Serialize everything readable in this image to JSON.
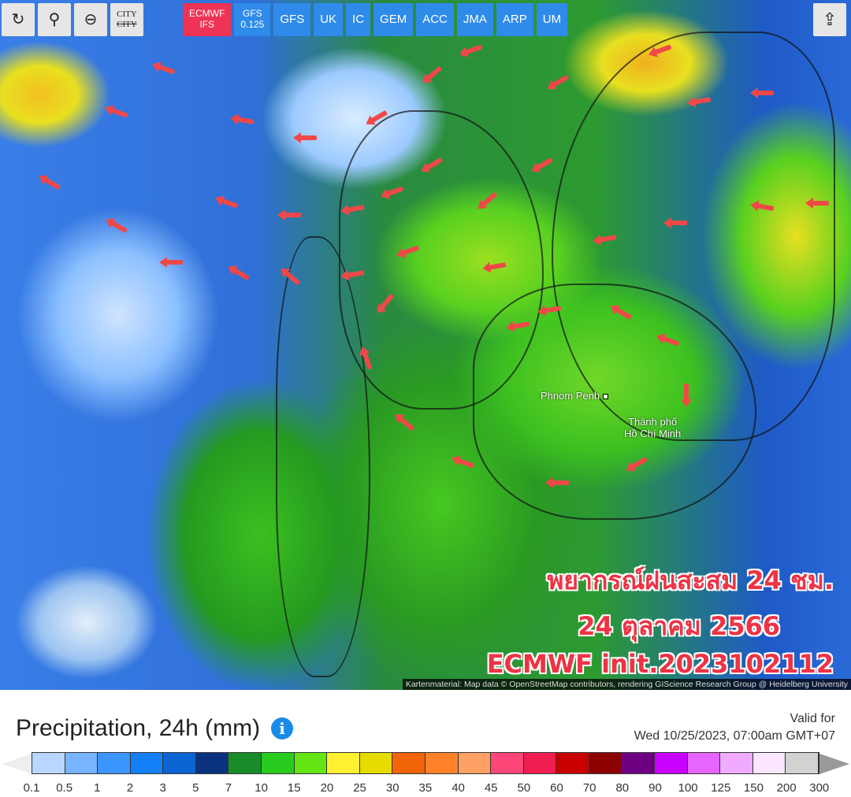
{
  "toolbar": {
    "buttons": [
      {
        "icon": "refresh-icon",
        "glyph": "↻"
      },
      {
        "icon": "map-pin-icon",
        "glyph": "⚲"
      },
      {
        "icon": "zoom-out-icon",
        "glyph": "⊖"
      }
    ],
    "city_toggle": {
      "top": "CITY",
      "bottom": "CITY"
    },
    "models": [
      {
        "label": "ECMWF",
        "sub": "IFS",
        "selected": true
      },
      {
        "label": "GFS",
        "sub": "0.125"
      },
      {
        "label": "GFS"
      },
      {
        "label": "UK"
      },
      {
        "label": "IC"
      },
      {
        "label": "GEM"
      },
      {
        "label": "ACC"
      },
      {
        "label": "JMA"
      },
      {
        "label": "ARP"
      },
      {
        "label": "UM"
      }
    ],
    "share_icon": "share-icon"
  },
  "map": {
    "cities": {
      "phnom_penh": "Phnom Penh",
      "hcm_1": "Thành phố",
      "hcm_2": "Hồ Chí Minh"
    },
    "overlay": {
      "line1": "พยากรณ์ฝนสะสม 24 ชม.",
      "line2": "24 ตุลาคม 2566",
      "line3": "ECMWF init.2023102112"
    },
    "attribution": "Kartenmaterial: Map data © OpenStreetMap contributors, rendering GIScience Research Group @ Heidelberg University",
    "overlay_color": "#ee3344"
  },
  "legend": {
    "title": "Precipitation, 24h (mm)",
    "valid_label": "Valid for",
    "valid_time": "Wed 10/25/2023, 07:00am GMT+07",
    "low_color": "#eeeeee",
    "high_color": "#999999",
    "colors": [
      "#b8d6ff",
      "#78b4ff",
      "#3c96ff",
      "#1480f8",
      "#0a64d2",
      "#0a327e",
      "#188c28",
      "#28cc1e",
      "#64e614",
      "#fff032",
      "#e6dc00",
      "#f0640a",
      "#ff8228",
      "#ffa064",
      "#ff4678",
      "#f01e50",
      "#c80000",
      "#8c0000",
      "#6e0082",
      "#c800ff",
      "#e664ff",
      "#f0aaff",
      "#fae6ff",
      "#d2d2d2"
    ],
    "ticks": [
      "0.1",
      "0.5",
      "1",
      "2",
      "3",
      "5",
      "7",
      "10",
      "15",
      "20",
      "25",
      "30",
      "35",
      "40",
      "45",
      "50",
      "60",
      "70",
      "80",
      "90",
      "100",
      "125",
      "150",
      "200",
      "300"
    ]
  }
}
